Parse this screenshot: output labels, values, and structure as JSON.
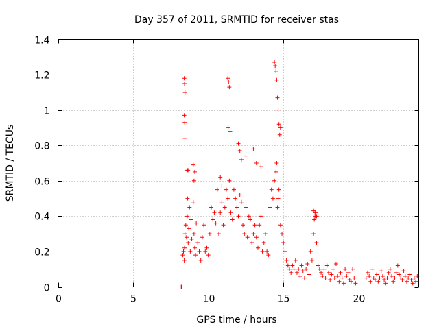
{
  "chart_data": {
    "type": "scatter",
    "title": "Day 357 of 2011, SRMTID for receiver stas",
    "xlabel": "GPS time / hours",
    "ylabel": "SRMTID / TECUs",
    "xlim": [
      0,
      24
    ],
    "ylim": [
      0,
      1.4
    ],
    "xticks": [
      0,
      5,
      10,
      15,
      20
    ],
    "xtick_labels": [
      "0",
      "5",
      "10",
      "15",
      "20"
    ],
    "yticks": [
      0,
      0.2,
      0.4,
      0.6,
      0.8,
      1.0,
      1.2,
      1.4
    ],
    "ytick_labels": [
      "0",
      "0.2",
      "0.4",
      "0.6",
      "0.8",
      "1",
      "1.2",
      "1.4"
    ],
    "grid": true,
    "marker": "plus",
    "color": "#ff0000",
    "series": [
      {
        "name": "SRMTID",
        "x": [
          8.2,
          8.22,
          8.25,
          8.3,
          8.35,
          8.4,
          8.42,
          8.45,
          8.5,
          8.55,
          8.6,
          8.62,
          8.66,
          8.7,
          8.75,
          8.8,
          8.85,
          8.9,
          9.0,
          9.05,
          9.1,
          9.15,
          9.2,
          9.3,
          9.4,
          9.5,
          9.6,
          9.7,
          9.8,
          9.9,
          10.0,
          10.1,
          10.2,
          10.3,
          10.4,
          10.5,
          10.6,
          10.7,
          10.8,
          10.9,
          11.0,
          11.1,
          11.2,
          11.3,
          11.4,
          11.5,
          11.6,
          11.7,
          11.8,
          11.9,
          12.0,
          12.1,
          12.2,
          12.3,
          12.4,
          12.5,
          12.6,
          12.7,
          12.8,
          12.9,
          13.0,
          13.1,
          13.2,
          13.3,
          13.4,
          13.5,
          13.6,
          13.7,
          13.8,
          13.9,
          14.0,
          14.1,
          14.2,
          14.3,
          14.4,
          14.5,
          14.55,
          14.6,
          14.65,
          14.7,
          14.8,
          14.9,
          15.0,
          15.1,
          15.2,
          15.3,
          15.4,
          15.5,
          15.6,
          15.7,
          15.8,
          15.9,
          16.0,
          16.1,
          16.2,
          16.3,
          16.4,
          16.5,
          16.6,
          16.7,
          16.8,
          16.9,
          17.0,
          17.05,
          17.1,
          17.15,
          17.2,
          17.3,
          17.4,
          17.5,
          17.6,
          17.7,
          17.8,
          17.9,
          18.0,
          18.1,
          18.2,
          18.3,
          18.4,
          18.5,
          18.6,
          18.7,
          18.8,
          18.9,
          19.0,
          19.1,
          19.2,
          19.3,
          19.4,
          19.5,
          19.6,
          19.7,
          19.8,
          20.5,
          20.6,
          20.7,
          20.8,
          20.9,
          21.0,
          21.1,
          21.2,
          21.3,
          21.4,
          21.5,
          21.6,
          21.7,
          21.8,
          21.9,
          22.0,
          22.1,
          22.2,
          22.3,
          22.4,
          22.5,
          22.6,
          22.7,
          22.8,
          22.9,
          23.0,
          23.1,
          23.2,
          23.3,
          23.4,
          23.5,
          23.6,
          23.7,
          23.8,
          23.9,
          8.4,
          8.42,
          8.45,
          8.4,
          8.43,
          8.44,
          8.6,
          8.65,
          9.0,
          9.1,
          9.05,
          10.8,
          10.9,
          11.3,
          11.35,
          11.4,
          11.32,
          11.45,
          12.0,
          12.1,
          12.2,
          12.5,
          13.0,
          13.2,
          13.5,
          14.4,
          14.45,
          14.5,
          14.55,
          14.6,
          14.65,
          14.7,
          14.8,
          14.75,
          17.0,
          17.1,
          17.2
        ],
        "y": [
          0.0,
          0.0,
          0.0,
          0.18,
          0.2,
          0.15,
          0.22,
          0.3,
          0.35,
          0.28,
          0.4,
          0.5,
          0.25,
          0.33,
          0.45,
          0.2,
          0.38,
          0.27,
          0.48,
          0.3,
          0.22,
          0.18,
          0.36,
          0.25,
          0.2,
          0.15,
          0.28,
          0.35,
          0.2,
          0.22,
          0.18,
          0.3,
          0.45,
          0.38,
          0.42,
          0.36,
          0.55,
          0.3,
          0.42,
          0.48,
          0.35,
          0.45,
          0.55,
          0.5,
          0.6,
          0.42,
          0.38,
          0.55,
          0.5,
          0.45,
          0.4,
          0.52,
          0.48,
          0.35,
          0.3,
          0.45,
          0.28,
          0.4,
          0.38,
          0.25,
          0.3,
          0.35,
          0.28,
          0.22,
          0.35,
          0.4,
          0.2,
          0.25,
          0.3,
          0.2,
          0.18,
          0.45,
          0.55,
          0.5,
          0.6,
          0.65,
          0.7,
          0.45,
          0.5,
          0.55,
          0.35,
          0.3,
          0.25,
          0.2,
          0.15,
          0.12,
          0.1,
          0.08,
          0.12,
          0.1,
          0.15,
          0.08,
          0.1,
          0.06,
          0.12,
          0.09,
          0.05,
          0.1,
          0.13,
          0.07,
          0.2,
          0.15,
          0.3,
          0.38,
          0.4,
          0.42,
          0.25,
          0.12,
          0.1,
          0.08,
          0.06,
          0.1,
          0.05,
          0.12,
          0.08,
          0.04,
          0.07,
          0.1,
          0.05,
          0.13,
          0.06,
          0.03,
          0.08,
          0.05,
          0.02,
          0.1,
          0.06,
          0.08,
          0.04,
          0.03,
          0.1,
          0.05,
          0.02,
          0.05,
          0.08,
          0.06,
          0.03,
          0.1,
          0.05,
          0.04,
          0.07,
          0.03,
          0.05,
          0.09,
          0.06,
          0.04,
          0.02,
          0.05,
          0.08,
          0.1,
          0.06,
          0.03,
          0.05,
          0.08,
          0.12,
          0.07,
          0.05,
          0.04,
          0.09,
          0.06,
          0.03,
          0.05,
          0.07,
          0.04,
          0.02,
          0.05,
          0.03,
          0.06,
          1.18,
          1.15,
          1.1,
          0.97,
          0.93,
          0.84,
          0.66,
          0.66,
          0.69,
          0.65,
          0.6,
          0.62,
          0.57,
          1.18,
          1.16,
          1.13,
          0.9,
          0.88,
          0.81,
          0.77,
          0.72,
          0.74,
          0.78,
          0.7,
          0.68,
          1.27,
          1.25,
          1.22,
          1.17,
          1.07,
          1.0,
          0.92,
          0.9,
          0.86,
          0.43,
          0.42,
          0.4
        ]
      }
    ]
  }
}
